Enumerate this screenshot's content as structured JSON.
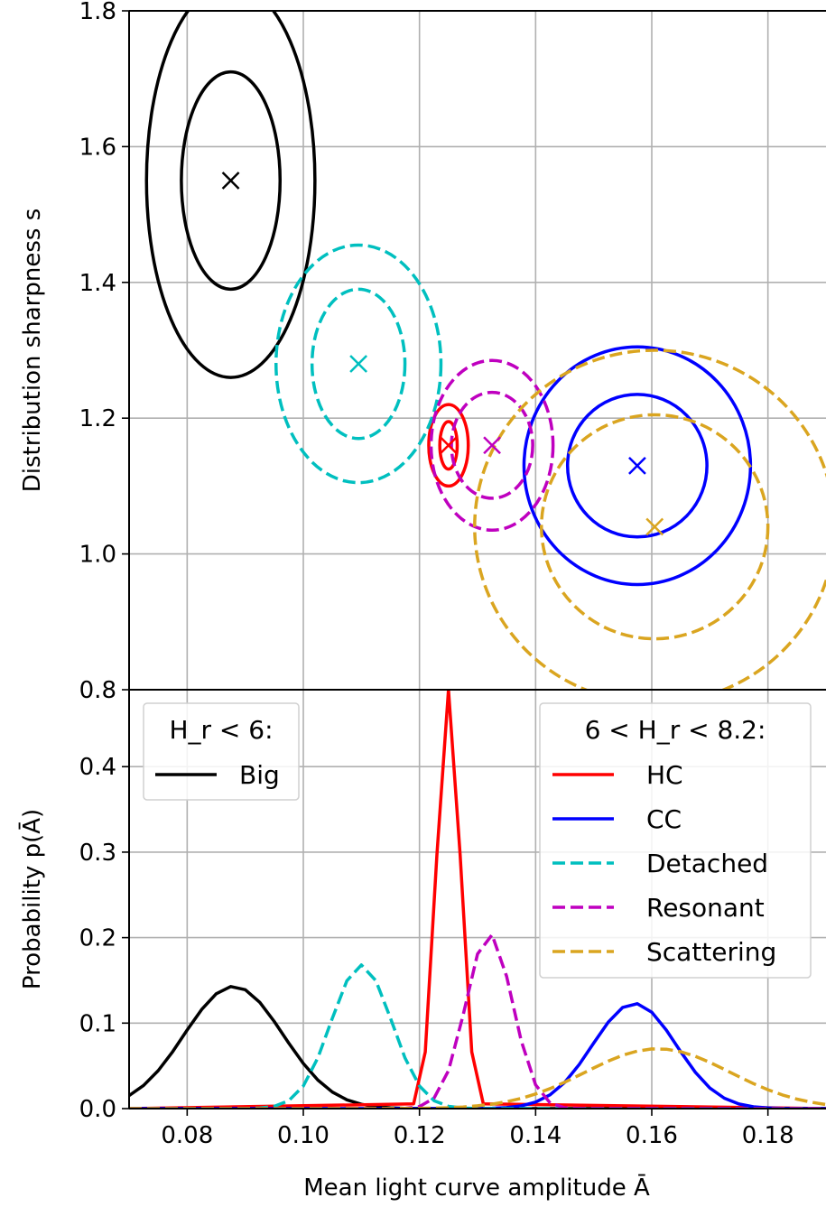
{
  "colors": {
    "Big": "#000000",
    "HC": "#ff0000",
    "CC": "#0000ff",
    "Detached": "#00bfbf",
    "Resonant": "#bf00bf",
    "Scattering": "#daa520",
    "grid": "#b0b0b0"
  },
  "chart_data": [
    {
      "type": "scatter",
      "panel": "top",
      "xlabel": "",
      "ylabel": "Distribution sharpness s",
      "xlim": [
        0.07,
        0.19
      ],
      "ylim": [
        0.8,
        1.8
      ],
      "y_ticks": [
        "0.8",
        "1.0",
        "1.2",
        "1.4",
        "1.6",
        "1.8"
      ],
      "grid": true,
      "series": [
        {
          "name": "Big",
          "style": "solid",
          "center": [
            0.0875,
            1.55
          ],
          "contours": [
            {
              "rx": 0.0085,
              "ry": 0.16
            },
            {
              "rx": 0.0145,
              "ry": 0.29
            }
          ]
        },
        {
          "name": "HC",
          "style": "solid",
          "center": [
            0.125,
            1.16
          ],
          "contours": [
            {
              "rx": 0.0015,
              "ry": 0.035
            },
            {
              "rx": 0.0034,
              "ry": 0.06
            }
          ]
        },
        {
          "name": "CC",
          "style": "solid",
          "center": [
            0.1575,
            1.13
          ],
          "contours": [
            {
              "rx": 0.012,
              "ry": 0.105
            },
            {
              "rx": 0.0195,
              "ry": 0.175
            }
          ]
        },
        {
          "name": "Detached",
          "style": "dashed",
          "center": [
            0.1095,
            1.28
          ],
          "contours": [
            {
              "rx": 0.008,
              "ry": 0.11
            },
            {
              "rx": 0.0142,
              "ry": 0.175
            }
          ]
        },
        {
          "name": "Resonant",
          "style": "dashed",
          "center": [
            0.1325,
            1.16
          ],
          "contours": [
            {
              "rx": 0.007,
              "ry": 0.078
            },
            {
              "rx": 0.0105,
              "ry": 0.125
            }
          ]
        },
        {
          "name": "Scattering",
          "style": "dashed",
          "center": [
            0.1605,
            1.04
          ],
          "contours": [
            {
              "rx": 0.0195,
              "ry": 0.165
            },
            {
              "rx": 0.031,
              "ry": 0.26
            }
          ]
        }
      ]
    },
    {
      "type": "line",
      "panel": "bottom",
      "xlabel": "Mean light curve amplitude Ā",
      "ylabel": "Probability p(Ā)",
      "xlim": [
        0.07,
        0.19
      ],
      "ylim": [
        0.0,
        0.49
      ],
      "x_ticks": [
        "0.08",
        "0.10",
        "0.12",
        "0.14",
        "0.16",
        "0.18"
      ],
      "y_ticks": [
        "0.0",
        "0.1",
        "0.2",
        "0.3",
        "0.4"
      ],
      "grid": true,
      "legends": [
        {
          "title": "H_r < 6:",
          "position": "upper-left",
          "entries": [
            "Big"
          ]
        },
        {
          "title": "6 < H_r < 8.2:",
          "position": "upper-right",
          "entries": [
            "HC",
            "CC",
            "Detached",
            "Resonant",
            "Scattering"
          ]
        }
      ],
      "series": [
        {
          "name": "Big",
          "style": "solid",
          "peak_x": 0.088,
          "peak_y": 0.143,
          "sigma": 0.0085
        },
        {
          "name": "HC",
          "style": "solid",
          "peak_x": 0.125,
          "peak_y": 0.49,
          "sigma": 0.002
        },
        {
          "name": "CC",
          "style": "solid",
          "peak_x": 0.157,
          "peak_y": 0.123,
          "sigma": 0.0072
        },
        {
          "name": "Detached",
          "style": "dashed",
          "peak_x": 0.11,
          "peak_y": 0.168,
          "sigma": 0.0052
        },
        {
          "name": "Resonant",
          "style": "dashed",
          "peak_x": 0.132,
          "peak_y": 0.205,
          "sigma": 0.004
        },
        {
          "name": "Scattering",
          "style": "dashed",
          "peak_x": 0.161,
          "peak_y": 0.07,
          "sigma": 0.0125
        }
      ]
    }
  ],
  "legend": {
    "big_title": "H_r < 6:",
    "big_entries": [
      "Big"
    ],
    "mid_title": "6 < H_r < 8.2:",
    "mid_entries": [
      "HC",
      "CC",
      "Detached",
      "Resonant",
      "Scattering"
    ]
  }
}
